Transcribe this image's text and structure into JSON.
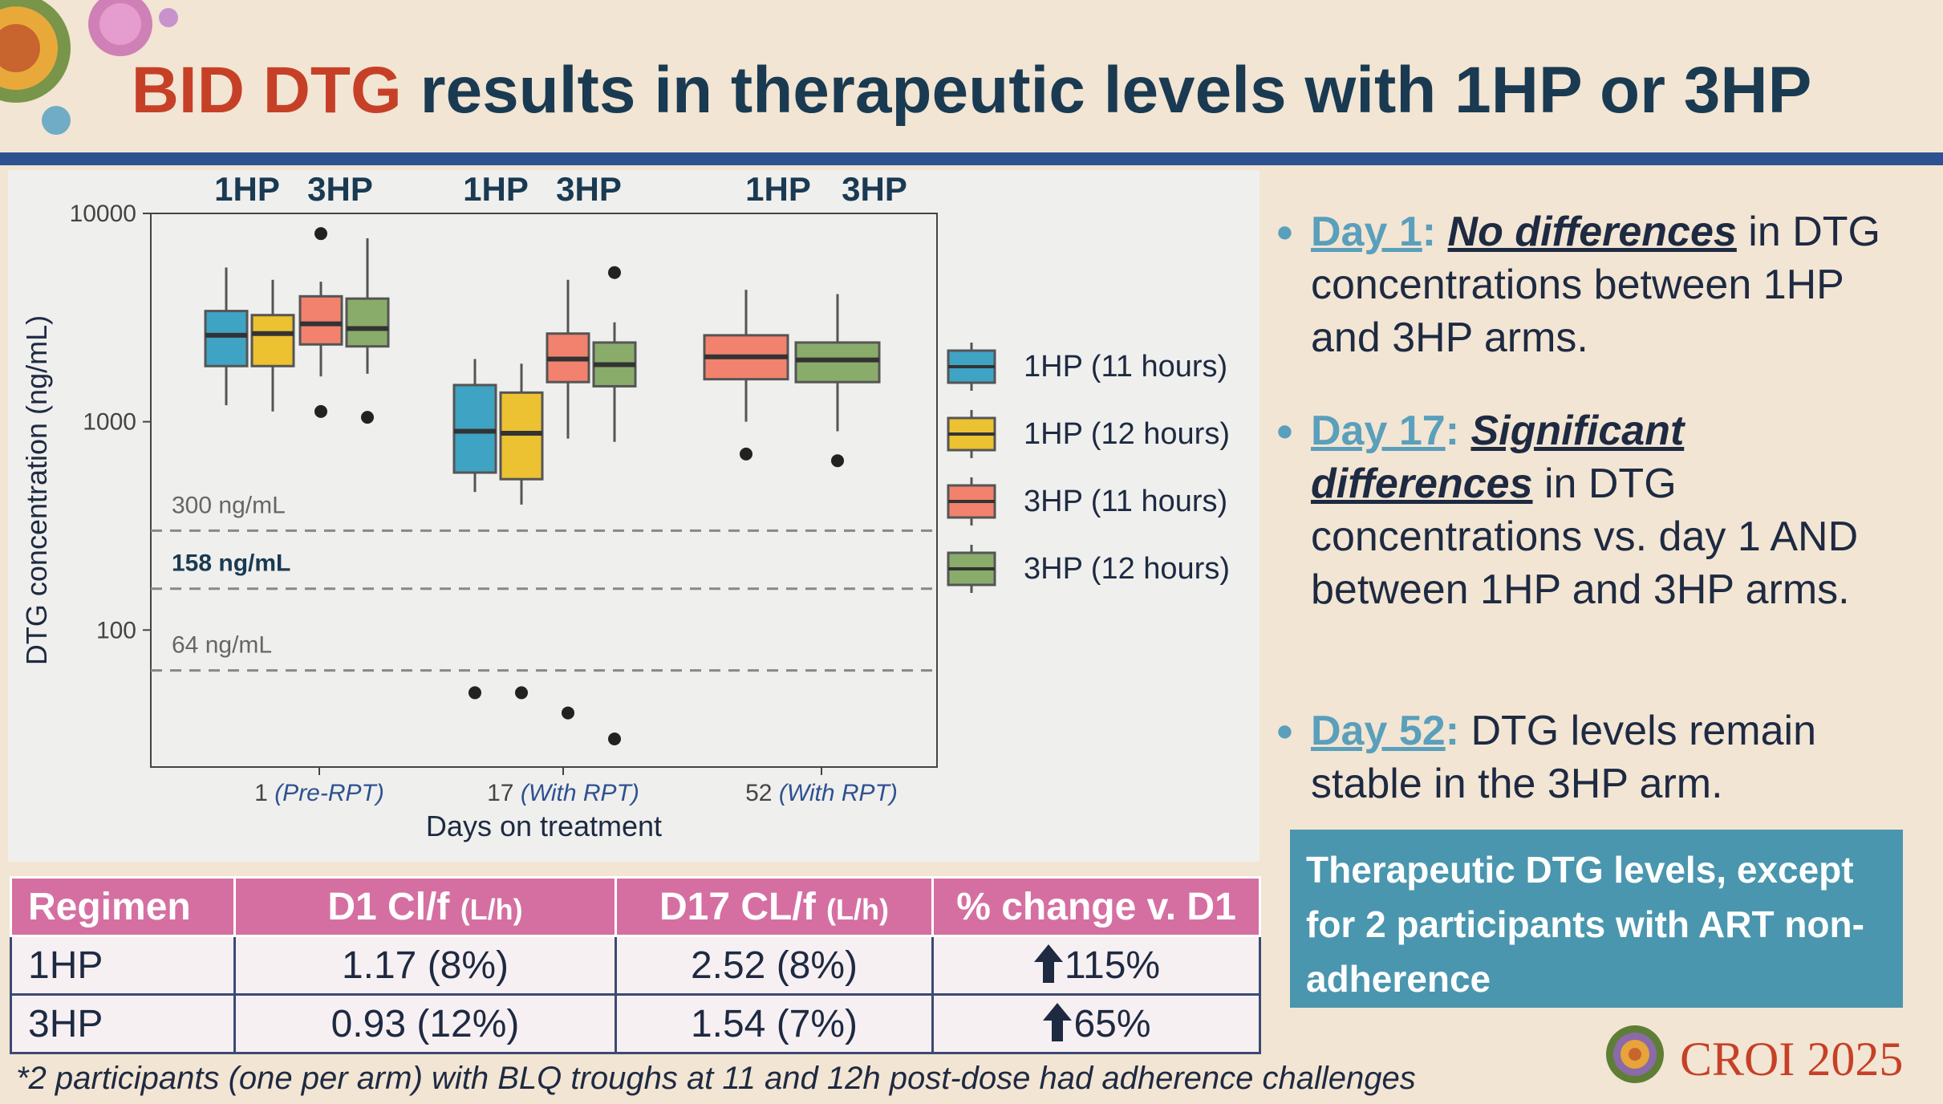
{
  "title": {
    "accent": "BID DTG",
    "rest": " results in therapeutic levels with 1HP or 3HP"
  },
  "chart_data": {
    "type": "box",
    "ylabel": "DTG concentration (ng/mL)",
    "xlabel": "Days on treatment",
    "yscale": "log",
    "ylim": [
      22,
      10000
    ],
    "yticks": [
      {
        "v": 100,
        "label": "100"
      },
      {
        "v": 1000,
        "label": "1000"
      },
      {
        "v": 10000,
        "label": "10000"
      }
    ],
    "xticks": [
      {
        "num": "1",
        "paren": "(Pre-RPT)"
      },
      {
        "num": "17",
        "paren": "(With RPT)"
      },
      {
        "num": "52",
        "paren": "(With RPT)"
      }
    ],
    "group_headers": [
      {
        "a": "1HP",
        "b": "3HP"
      },
      {
        "a": "1HP",
        "b": "3HP"
      },
      {
        "a": "1HP",
        "b": "3HP"
      }
    ],
    "reference_lines": [
      {
        "value": 300,
        "label": "300 ng/mL",
        "emphasis": false
      },
      {
        "value": 158,
        "label": "158 ng/mL",
        "emphasis": true
      },
      {
        "value": 64,
        "label": "64 ng/mL",
        "emphasis": false
      }
    ],
    "legend": [
      {
        "label": "1HP (11 hours)",
        "color": "#3fa3c4"
      },
      {
        "label": "1HP (12 hours)",
        "color": "#ecc132"
      },
      {
        "label": "3HP (11 hours)",
        "color": "#f2826d"
      },
      {
        "label": "3HP (12 hours)",
        "color": "#8aac6b"
      }
    ],
    "series": [
      {
        "day": "1",
        "group": "1HP (11 hours)",
        "color": "#3fa3c4",
        "whisker_low": 1200,
        "q1": 1850,
        "median": 2600,
        "q3": 3400,
        "whisker_high": 5500,
        "outliers": []
      },
      {
        "day": "1",
        "group": "1HP (12 hours)",
        "color": "#ecc132",
        "whisker_low": 1120,
        "q1": 1850,
        "median": 2650,
        "q3": 3250,
        "whisker_high": 4800,
        "outliers": []
      },
      {
        "day": "1",
        "group": "3HP (11 hours)",
        "color": "#f2826d",
        "whisker_low": 1650,
        "q1": 2350,
        "median": 2950,
        "q3": 4000,
        "whisker_high": 4700,
        "outliers": [
          8000,
          1120
        ]
      },
      {
        "day": "1",
        "group": "3HP (12 hours)",
        "color": "#8aac6b",
        "whisker_low": 1700,
        "q1": 2300,
        "median": 2800,
        "q3": 3900,
        "whisker_high": 7600,
        "outliers": [
          1050
        ]
      },
      {
        "day": "17",
        "group": "1HP (11 hours)",
        "color": "#3fa3c4",
        "whisker_low": 460,
        "q1": 570,
        "median": 900,
        "q3": 1500,
        "whisker_high": 2000,
        "outliers": [
          50
        ]
      },
      {
        "day": "17",
        "group": "1HP (12 hours)",
        "color": "#ecc132",
        "whisker_low": 400,
        "q1": 530,
        "median": 880,
        "q3": 1380,
        "whisker_high": 1900,
        "outliers": [
          50
        ]
      },
      {
        "day": "17",
        "group": "3HP (11 hours)",
        "color": "#f2826d",
        "whisker_low": 830,
        "q1": 1550,
        "median": 2000,
        "q3": 2650,
        "whisker_high": 4800,
        "outliers": [
          40
        ]
      },
      {
        "day": "17",
        "group": "3HP (12 hours)",
        "color": "#8aac6b",
        "whisker_low": 800,
        "q1": 1480,
        "median": 1880,
        "q3": 2400,
        "whisker_high": 3000,
        "outliers": [
          5200,
          30
        ]
      },
      {
        "day": "52",
        "group": "1HP",
        "color": "#f2826d",
        "whisker_low": 1000,
        "q1": 1600,
        "median": 2050,
        "q3": 2600,
        "whisker_high": 4300,
        "outliers": [
          700
        ]
      },
      {
        "day": "52",
        "group": "3HP",
        "color": "#8aac6b",
        "whisker_low": 900,
        "q1": 1550,
        "median": 1980,
        "q3": 2400,
        "whisker_high": 4100,
        "outliers": [
          650
        ]
      }
    ]
  },
  "table": {
    "headers": [
      {
        "main": "Regimen",
        "unit": ""
      },
      {
        "main": "D1 Cl/f ",
        "unit": "(L/h)"
      },
      {
        "main": "D17 CL/f ",
        "unit": "(L/h)"
      },
      {
        "main": "% change v. D1",
        "unit": ""
      }
    ],
    "rows": [
      {
        "regimen": "1HP",
        "d1": "1.17 (8%)",
        "d17": "2.52 (8%)",
        "change": "115%"
      },
      {
        "regimen": "3HP",
        "d1": "0.93 (12%)",
        "d17": "1.54 (7%)",
        "change": "65%"
      }
    ]
  },
  "footnote": "*2 participants (one per arm) with BLQ troughs at 11 and 12h post-dose had adherence challenges",
  "bullets": [
    {
      "day": "Day 1",
      "colon": ":",
      "emph": "No differences",
      "rest": " in DTG concentrations between 1HP and 3HP arms."
    },
    {
      "day": "Day 17",
      "colon": ":",
      "emph": "Significant differences",
      "rest": " in DTG concentrations vs. day 1 AND between 1HP and 3HP arms."
    },
    {
      "day": "Day 52",
      "colon": ":",
      "emph": "",
      "rest": " DTG levels remain stable in the 3HP arm."
    }
  ],
  "callout": "Therapeutic DTG levels, except for 2 participants with ART non-adherence",
  "logo": {
    "text": "CROI 2025"
  },
  "colors": {
    "title_accent": "#c64027",
    "title_main": "#1a3a52",
    "rule": "#2e5191",
    "table_header": "#d56fa2",
    "callout": "#4a96ae",
    "bullet_day": "#5a9fbb"
  }
}
